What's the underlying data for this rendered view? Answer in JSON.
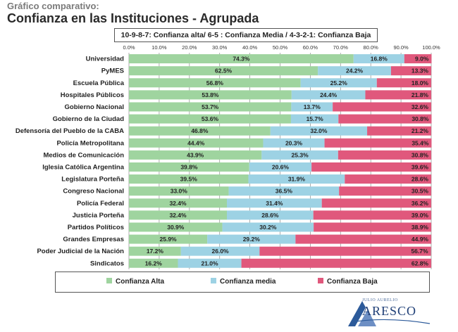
{
  "supertitle": "Gráfico comparativo:",
  "title": "Confianza en las Instituciones - Agrupada",
  "scale_legend": "10-9-8-7: Confianza alta/ 6-5 : Confianza Media / 4-3-2-1: Confianza Baja",
  "logo": {
    "small": "JULIO AURELIO",
    "big": "ARESCO"
  },
  "colors": {
    "alta": "#9fd49f",
    "media": "#9dd2e4",
    "baja": "#e0587c",
    "grid": "#9a9a9a"
  },
  "chart_data": {
    "type": "bar",
    "orientation": "horizontal",
    "stacked": true,
    "title": "Confianza en las Instituciones - Agrupada",
    "xlim": [
      0,
      100
    ],
    "xticks": [
      "0.0%",
      "10.0%",
      "20.0%",
      "30.0%",
      "40.0%",
      "50.0%",
      "60.0%",
      "70.0%",
      "80.0%",
      "90.0%",
      "100.0%"
    ],
    "grid": true,
    "legend_position": "bottom",
    "categories": [
      "Universidad",
      "PyMES",
      "Escuela Pública",
      "Hospitales Públicos",
      "Gobierno Nacional",
      "Gobierno de la Ciudad",
      "Defensoría del Pueblo de la CABA",
      "Policía Metropolitana",
      "Medios de Comunicación",
      "Iglesia Católica Argentina",
      "Legislatura Porteña",
      "Congreso Nacional",
      "Policía Federal",
      "Justicia Porteña",
      "Partidos Políticos",
      "Grandes Empresas",
      "Poder Judicial de la Nación",
      "Sindicatos"
    ],
    "series": [
      {
        "name": "Confianza Alta",
        "key": "alta",
        "values": [
          74.3,
          62.5,
          56.8,
          53.8,
          53.7,
          53.6,
          46.8,
          44.4,
          43.9,
          39.8,
          39.5,
          33.0,
          32.4,
          32.4,
          30.9,
          25.9,
          17.2,
          16.2
        ],
        "labels": [
          "74.3%",
          "62.5%",
          "56.8%",
          "53.8%",
          "53.7%",
          "53.6%",
          "46.8%",
          "44.4%",
          "43.9%",
          "39.8%",
          "39.5%",
          "33.0%",
          "32.4%",
          "32.4%",
          "30.9%",
          "25.9%",
          "17.2%",
          "16.2%"
        ]
      },
      {
        "name": "Confianza media",
        "key": "media",
        "values": [
          16.8,
          24.2,
          25.2,
          24.4,
          13.7,
          15.7,
          32.0,
          20.3,
          25.3,
          20.6,
          31.9,
          36.5,
          31.4,
          28.6,
          30.2,
          29.2,
          26.0,
          21.0
        ],
        "labels": [
          "16.8%",
          "24.2%",
          "25.2%",
          "24.4%",
          "13.7%",
          "15.7%",
          "32.0%",
          "20.3%",
          "25.3%",
          "20.6%",
          "31.9%",
          "36.5%",
          "31.4%",
          "28.6%",
          "30.2%",
          "29.2%",
          "26.0%",
          "21.0%"
        ]
      },
      {
        "name": "Confianza Baja",
        "key": "baja",
        "values": [
          9.0,
          13.3,
          18.0,
          21.8,
          32.6,
          30.8,
          21.2,
          35.4,
          30.8,
          39.6,
          28.6,
          30.5,
          36.2,
          39.0,
          38.9,
          44.9,
          56.7,
          62.8
        ],
        "labels": [
          "9.0%",
          "13.3%",
          "18.0%",
          "21.8%",
          "32.6%",
          "30.8%",
          "21.2%",
          "35.4%",
          "30.8%",
          "39.6%",
          "28.6%",
          "30.5%",
          "36.2%",
          "39.0%",
          "38.9%",
          "44.9%",
          "56.7%",
          "62.8%"
        ]
      }
    ]
  }
}
